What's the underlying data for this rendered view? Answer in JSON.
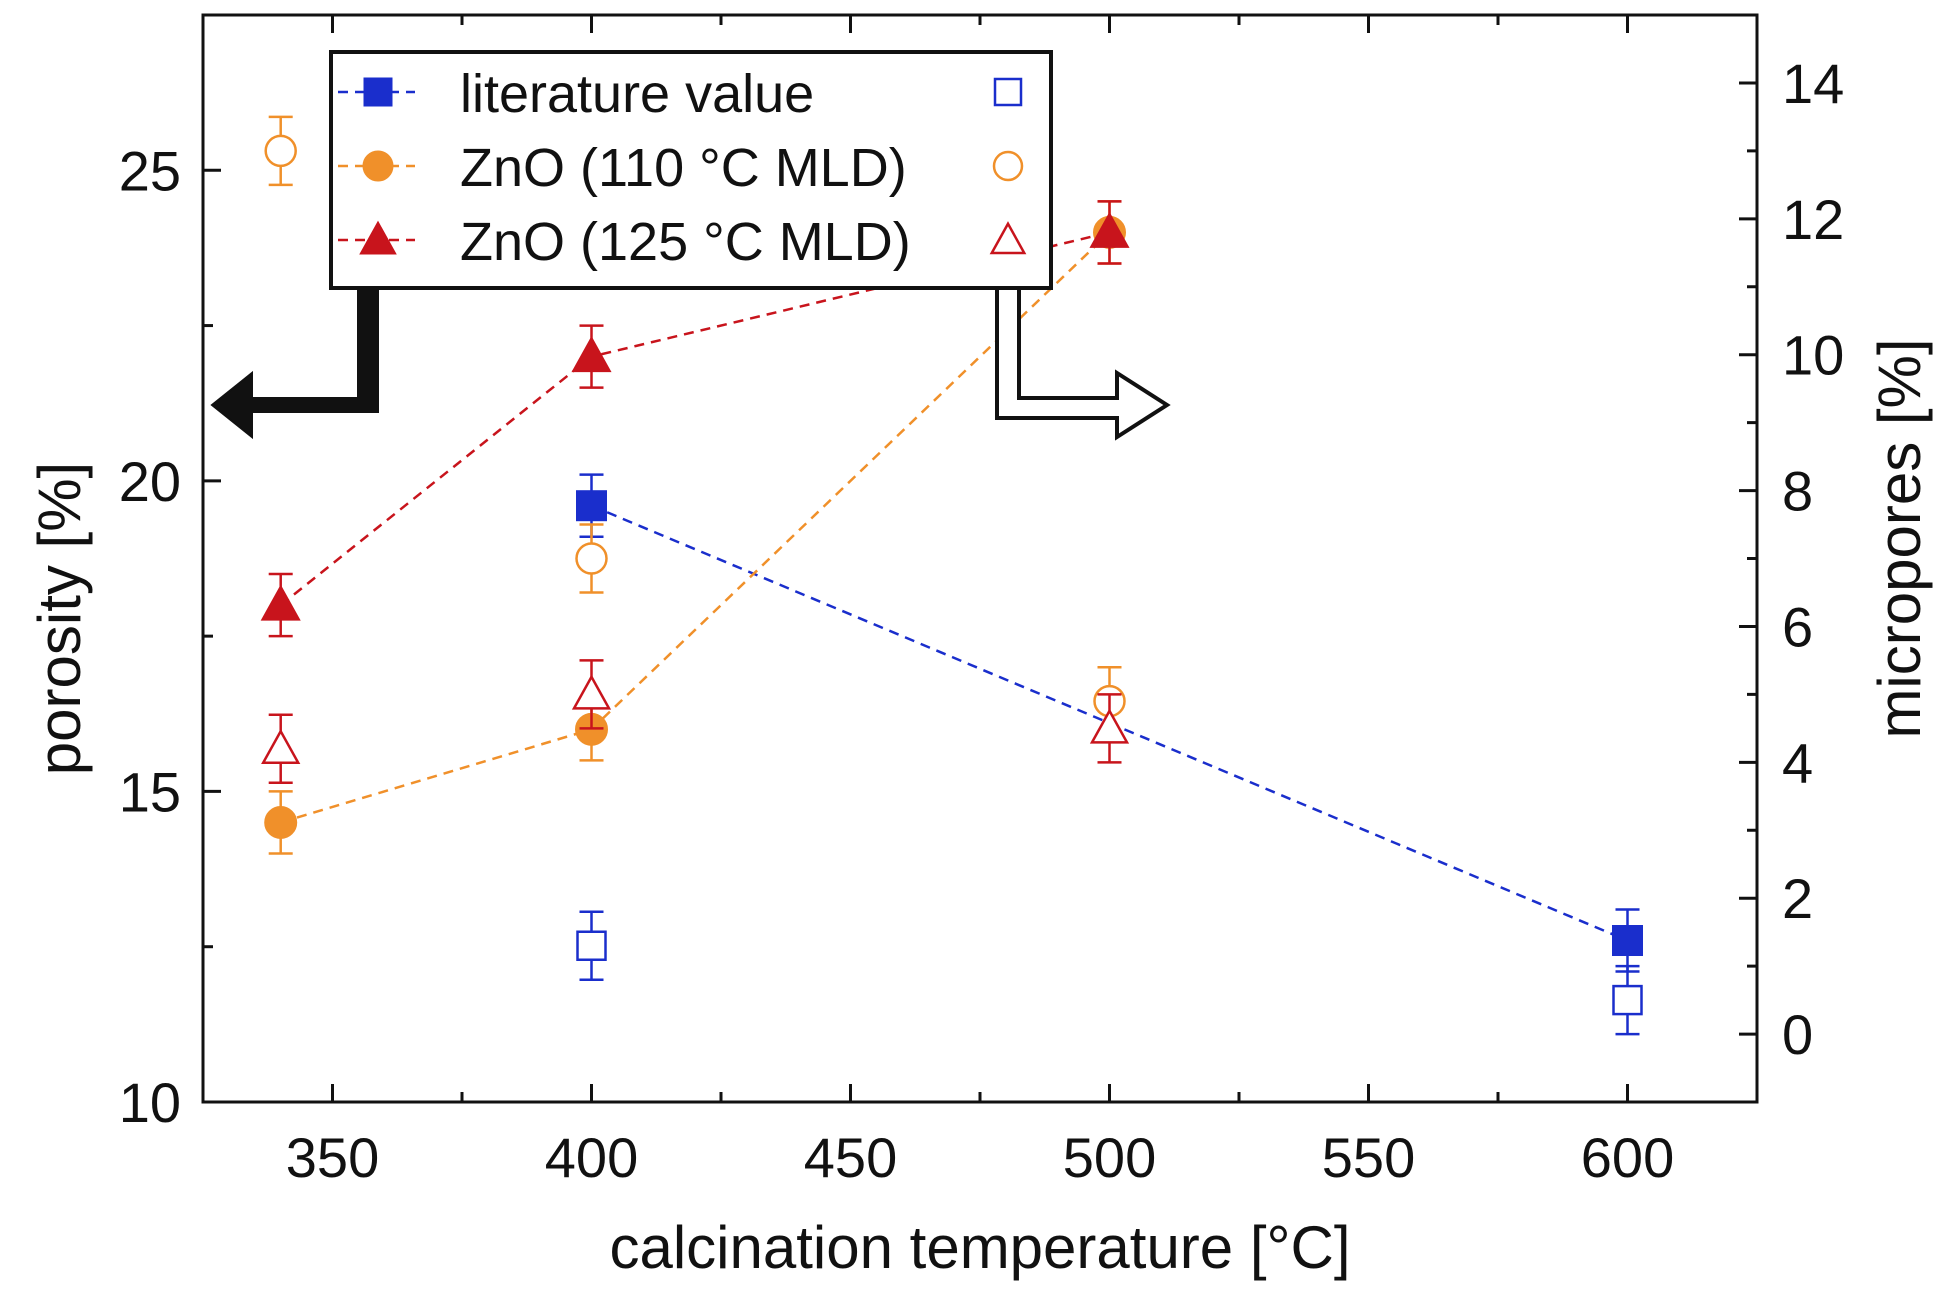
{
  "chart_data": {
    "type": "scatter",
    "title": "",
    "xlabel": "calcination temperature [°C]",
    "ylabel": "porosity [%]",
    "y2label": "micropores [%]",
    "xlim": [
      325,
      625
    ],
    "ylim": [
      10,
      27.5
    ],
    "y2lim": [
      -1,
      15
    ],
    "xticks": [
      350,
      400,
      450,
      500,
      550,
      600
    ],
    "yticks": [
      10,
      15,
      20,
      25
    ],
    "y2ticks": [
      0,
      2,
      4,
      6,
      8,
      10,
      12,
      14
    ],
    "legend_position": "top-left",
    "grid": false,
    "series": [
      {
        "name": "literature value",
        "color": "#1a2ecc",
        "marker": "square",
        "axis": "left",
        "filled": true,
        "x": [
          400,
          600
        ],
        "y": [
          19.6,
          12.6
        ],
        "err": [
          0.5,
          0.5
        ]
      },
      {
        "name": "ZnO (110 °C MLD)",
        "color": "#f0902a",
        "marker": "circle",
        "axis": "left",
        "filled": true,
        "x": [
          340,
          400,
          500
        ],
        "y": [
          14.5,
          16.0,
          24.0
        ],
        "err": [
          0.5,
          0.5,
          0.5
        ]
      },
      {
        "name": "ZnO (125 °C MLD)",
        "color": "#c8141c",
        "marker": "triangle",
        "axis": "left",
        "filled": true,
        "x": [
          340,
          400,
          500
        ],
        "y": [
          18.0,
          22.0,
          24.0
        ],
        "err": [
          0.5,
          0.5,
          0.5
        ]
      },
      {
        "name": "literature value (micropores)",
        "color": "#1a2ecc",
        "marker": "square",
        "axis": "right",
        "filled": false,
        "x": [
          400,
          600
        ],
        "y": [
          1.3,
          0.5
        ],
        "err": [
          0.5,
          0.5
        ]
      },
      {
        "name": "ZnO (110 °C MLD) (micropores)",
        "color": "#f0902a",
        "marker": "circle",
        "axis": "right",
        "filled": false,
        "x": [
          340,
          400,
          500
        ],
        "y": [
          13.0,
          7.0,
          4.9
        ],
        "err": [
          0.5,
          0.5,
          0.5
        ]
      },
      {
        "name": "ZnO (125 °C MLD) (micropores)",
        "color": "#c8141c",
        "marker": "triangle",
        "axis": "right",
        "filled": false,
        "x": [
          340,
          400,
          500
        ],
        "y": [
          4.2,
          5.0,
          4.5
        ],
        "err": [
          0.5,
          0.5,
          0.5
        ]
      }
    ]
  }
}
